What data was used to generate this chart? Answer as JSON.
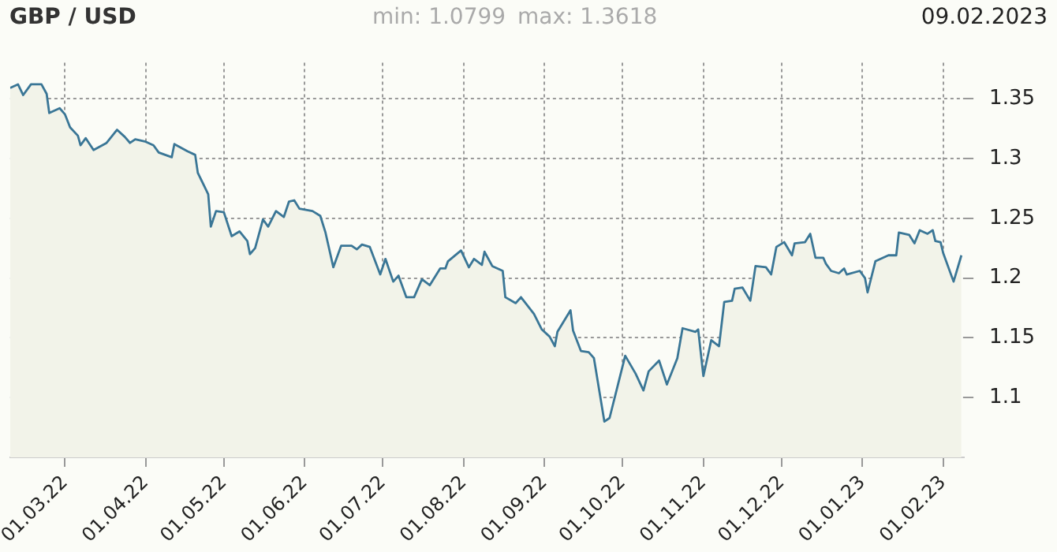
{
  "chart_data": {
    "type": "area",
    "title": "GBP / USD",
    "annotations": [
      "min: 1.0799",
      "max: 1.3618",
      "09.02.2023"
    ],
    "x": [
      "2022-02-08",
      "2022-02-11",
      "2022-02-13",
      "2022-02-16",
      "2022-02-20",
      "2022-02-22",
      "2022-02-23",
      "2022-02-27",
      "2022-03-01",
      "2022-03-03",
      "2022-03-06",
      "2022-03-07",
      "2022-03-09",
      "2022-03-12",
      "2022-03-17",
      "2022-03-21",
      "2022-03-24",
      "2022-03-26",
      "2022-03-28",
      "2022-04-01",
      "2022-04-04",
      "2022-04-06",
      "2022-04-11",
      "2022-04-12",
      "2022-04-17",
      "2022-04-20",
      "2022-04-21",
      "2022-04-25",
      "2022-04-26",
      "2022-04-28",
      "2022-05-01",
      "2022-05-04",
      "2022-05-07",
      "2022-05-10",
      "2022-05-11",
      "2022-05-13",
      "2022-05-16",
      "2022-05-18",
      "2022-05-21",
      "2022-05-24",
      "2022-05-26",
      "2022-05-28",
      "2022-05-30",
      "2022-06-04",
      "2022-06-07",
      "2022-06-09",
      "2022-06-12",
      "2022-06-15",
      "2022-06-19",
      "2022-06-21",
      "2022-06-23",
      "2022-06-26",
      "2022-06-30",
      "2022-07-02",
      "2022-07-05",
      "2022-07-07",
      "2022-07-10",
      "2022-07-13",
      "2022-07-16",
      "2022-07-19",
      "2022-07-23",
      "2022-07-25",
      "2022-07-26",
      "2022-07-31",
      "2022-08-03",
      "2022-08-05",
      "2022-08-08",
      "2022-08-09",
      "2022-08-12",
      "2022-08-16",
      "2022-08-17",
      "2022-08-21",
      "2022-08-23",
      "2022-08-28",
      "2022-08-31",
      "2022-09-03",
      "2022-09-05",
      "2022-09-06",
      "2022-09-11",
      "2022-09-12",
      "2022-09-15",
      "2022-09-18",
      "2022-09-20",
      "2022-09-24",
      "2022-09-26",
      "2022-09-29",
      "2022-10-02",
      "2022-10-06",
      "2022-10-09",
      "2022-10-11",
      "2022-10-15",
      "2022-10-18",
      "2022-10-22",
      "2022-10-24",
      "2022-10-29",
      "2022-10-30",
      "2022-11-01",
      "2022-11-04",
      "2022-11-07",
      "2022-11-09",
      "2022-11-12",
      "2022-11-13",
      "2022-11-16",
      "2022-11-19",
      "2022-11-21",
      "2022-11-25",
      "2022-11-27",
      "2022-11-29",
      "2022-12-02",
      "2022-12-05",
      "2022-12-06",
      "2022-12-10",
      "2022-12-12",
      "2022-12-14",
      "2022-12-17",
      "2022-12-18",
      "2022-12-20",
      "2022-12-23",
      "2022-12-25",
      "2022-12-26",
      "2022-12-31",
      "2023-01-02",
      "2023-01-03",
      "2023-01-06",
      "2023-01-11",
      "2023-01-14",
      "2023-01-15",
      "2023-01-19",
      "2023-01-21",
      "2023-01-23",
      "2023-01-26",
      "2023-01-28",
      "2023-01-29",
      "2023-01-31",
      "2023-02-01",
      "2023-02-05",
      "2023-02-08"
    ],
    "values": [
      1.359,
      1.362,
      1.353,
      1.362,
      1.362,
      1.354,
      1.338,
      1.342,
      1.337,
      1.326,
      1.319,
      1.311,
      1.317,
      1.307,
      1.313,
      1.324,
      1.318,
      1.313,
      1.316,
      1.314,
      1.311,
      1.305,
      1.301,
      1.312,
      1.306,
      1.303,
      1.288,
      1.27,
      1.243,
      1.256,
      1.255,
      1.235,
      1.239,
      1.231,
      1.22,
      1.225,
      1.249,
      1.243,
      1.256,
      1.251,
      1.264,
      1.265,
      1.258,
      1.256,
      1.252,
      1.238,
      1.209,
      1.227,
      1.227,
      1.224,
      1.228,
      1.226,
      1.203,
      1.216,
      1.197,
      1.202,
      1.184,
      1.184,
      1.199,
      1.194,
      1.208,
      1.208,
      1.214,
      1.223,
      1.209,
      1.216,
      1.211,
      1.222,
      1.21,
      1.206,
      1.184,
      1.179,
      1.184,
      1.17,
      1.157,
      1.151,
      1.143,
      1.155,
      1.173,
      1.156,
      1.139,
      1.138,
      1.133,
      1.08,
      1.083,
      1.109,
      1.135,
      1.12,
      1.106,
      1.122,
      1.131,
      1.111,
      1.133,
      1.158,
      1.155,
      1.157,
      1.118,
      1.148,
      1.143,
      1.18,
      1.181,
      1.191,
      1.192,
      1.181,
      1.21,
      1.209,
      1.203,
      1.226,
      1.23,
      1.219,
      1.229,
      1.23,
      1.237,
      1.217,
      1.217,
      1.212,
      1.206,
      1.204,
      1.208,
      1.203,
      1.206,
      1.2,
      1.188,
      1.214,
      1.219,
      1.219,
      1.238,
      1.236,
      1.229,
      1.24,
      1.237,
      1.24,
      1.231,
      1.23,
      1.221,
      1.197,
      1.219
    ],
    "color": "#3a7696",
    "xlim": [
      "2022-02-08",
      "2023-02-09"
    ],
    "xticks": [
      {
        "value": "2022-03-01",
        "label": "01.03.22"
      },
      {
        "value": "2022-04-01",
        "label": "01.04.22"
      },
      {
        "value": "2022-05-01",
        "label": "01.05.22"
      },
      {
        "value": "2022-06-01",
        "label": "01.06.22"
      },
      {
        "value": "2022-07-01",
        "label": "01.07.22"
      },
      {
        "value": "2022-08-01",
        "label": "01.08.22"
      },
      {
        "value": "2022-09-01",
        "label": "01.09.22"
      },
      {
        "value": "2022-10-01",
        "label": "01.10.22"
      },
      {
        "value": "2022-11-01",
        "label": "01.11.22"
      },
      {
        "value": "2022-12-01",
        "label": "01.12.22"
      },
      {
        "value": "2023-01-01",
        "label": "01.01.23"
      },
      {
        "value": "2023-02-01",
        "label": "01.02.23"
      }
    ],
    "ylim": [
      1.05,
      1.38
    ],
    "yticks": [
      1.1,
      1.15,
      1.2,
      1.25,
      1.3,
      1.35
    ],
    "grid": true
  }
}
